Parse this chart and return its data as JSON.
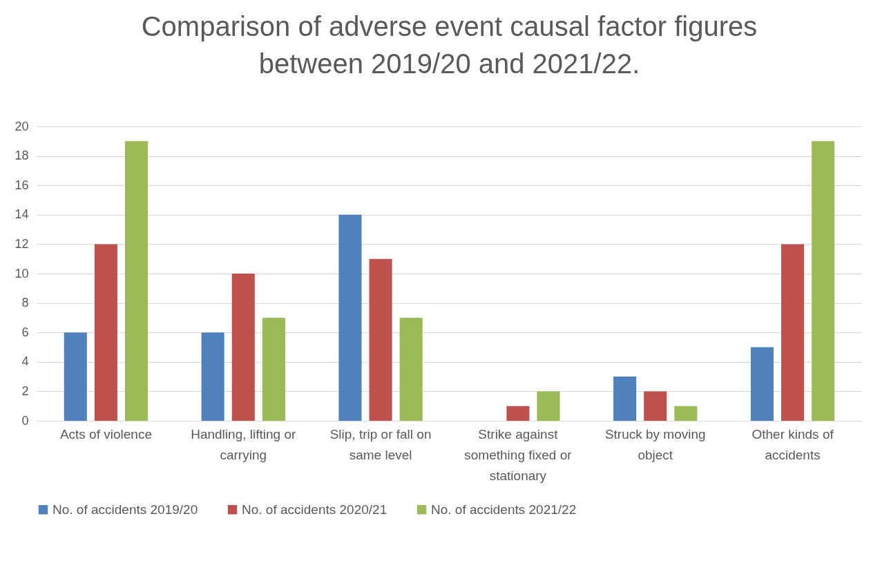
{
  "chart_data": {
    "type": "bar",
    "title": "Comparison of adverse event causal factor figures between 2019/20 and 2021/22.",
    "categories": [
      "Acts of violence",
      "Handling, lifting or carrying",
      "Slip, trip or fall on same level",
      "Strike against something fixed or stationary",
      "Struck by moving object",
      "Other kinds of accidents"
    ],
    "series": [
      {
        "name": "No. of accidents 2019/20",
        "color": "#4f81bd",
        "values": [
          6,
          6,
          14,
          0,
          3,
          5
        ]
      },
      {
        "name": "No. of accidents 2020/21",
        "color": "#c0504d",
        "values": [
          12,
          10,
          11,
          1,
          2,
          12
        ]
      },
      {
        "name": "No. of accidents 2021/22",
        "color": "#9bbb59",
        "values": [
          19,
          7,
          7,
          2,
          1,
          19
        ]
      }
    ],
    "ylim": [
      0,
      20
    ],
    "yticks": [
      0,
      2,
      4,
      6,
      8,
      10,
      12,
      14,
      16,
      18,
      20
    ],
    "grid": "y",
    "legend": "bottom"
  }
}
